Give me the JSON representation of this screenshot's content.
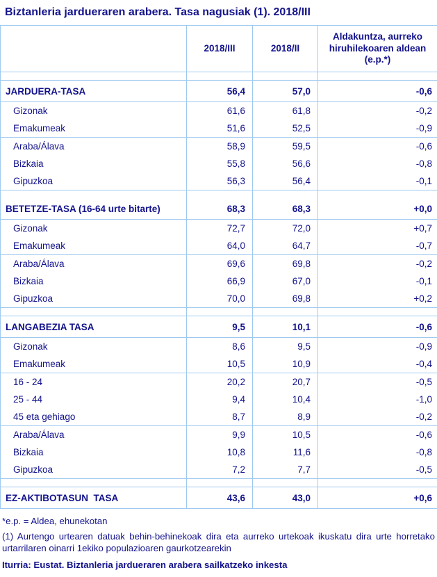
{
  "title": "Biztanleria jardueraren arabera. Tasa nagusiak (1). 2018/III",
  "colors": {
    "text_navy": "#12128c",
    "border_light_blue": "#9fc9f0",
    "background": "#ffffff"
  },
  "table": {
    "columns": {
      "label": "",
      "col1": "2018/III",
      "col2": "2018/II",
      "col3": "Aldakuntza, aurreko hiruhilekoaren aldean (e.p.*)"
    },
    "sections": [
      {
        "header": {
          "label": "JARDUERA-TASA",
          "v1": "56,4",
          "v2": "57,0",
          "chg": "-0,6"
        },
        "rows": [
          {
            "label": "Gizonak",
            "v1": "61,6",
            "v2": "61,8",
            "chg": "-0,2"
          },
          {
            "label": "Emakumeak",
            "v1": "51,6",
            "v2": "52,5",
            "chg": "-0,9"
          },
          {
            "label": "Araba/Álava",
            "v1": "58,9",
            "v2": "59,5",
            "chg": "-0,6"
          },
          {
            "label": "Bizkaia",
            "v1": "55,8",
            "v2": "56,6",
            "chg": "-0,8"
          },
          {
            "label": "Gipuzkoa",
            "v1": "56,3",
            "v2": "56,4",
            "chg": "-0,1"
          }
        ]
      },
      {
        "header": {
          "label": "BETETZE-TASA (16-64 urte bitarte)",
          "v1": "68,3",
          "v2": "68,3",
          "chg": "+0,0"
        },
        "rows": [
          {
            "label": "Gizonak",
            "v1": "72,7",
            "v2": "72,0",
            "chg": "+0,7"
          },
          {
            "label": "Emakumeak",
            "v1": "64,0",
            "v2": "64,7",
            "chg": "-0,7"
          },
          {
            "label": "Araba/Álava",
            "v1": "69,6",
            "v2": "69,8",
            "chg": "-0,2"
          },
          {
            "label": "Bizkaia",
            "v1": "66,9",
            "v2": "67,0",
            "chg": "-0,1"
          },
          {
            "label": "Gipuzkoa",
            "v1": "70,0",
            "v2": "69,8",
            "chg": "+0,2"
          }
        ]
      },
      {
        "header": {
          "label": "LANGABEZIA TASA",
          "v1": "9,5",
          "v2": "10,1",
          "chg": "-0,6"
        },
        "rows": [
          {
            "label": "Gizonak",
            "v1": "8,6",
            "v2": "9,5",
            "chg": "-0,9"
          },
          {
            "label": "Emakumeak",
            "v1": "10,5",
            "v2": "10,9",
            "chg": "-0,4"
          },
          {
            "label": "16 - 24",
            "v1": "20,2",
            "v2": "20,7",
            "chg": "-0,5"
          },
          {
            "label": "25 - 44",
            "v1": "9,4",
            "v2": "10,4",
            "chg": "-1,0"
          },
          {
            "label": "45 eta gehiago",
            "v1": "8,7",
            "v2": "8,9",
            "chg": "-0,2"
          },
          {
            "label": "Araba/Álava",
            "v1": "9,9",
            "v2": "10,5",
            "chg": "-0,6"
          },
          {
            "label": "Bizkaia",
            "v1": "10,8",
            "v2": "11,6",
            "chg": "-0,8"
          },
          {
            "label": "Gipuzkoa",
            "v1": "7,2",
            "v2": "7,7",
            "chg": "-0,5"
          }
        ]
      },
      {
        "header": {
          "label": "EZ-AKTIBOTASUN  TASA",
          "v1": "43,6",
          "v2": "43,0",
          "chg": "+0,6"
        },
        "rows": []
      }
    ]
  },
  "footnotes": {
    "ep_note": "*e.p. = Aldea, ehunekotan",
    "note1": "(1) Aurtengo urtearen datuak behin-behinekoak dira eta aurreko urtekoak ikuskatu dira urte horretako urtarrilaren oinarri 1ekiko populazioaren gaurkotzearekin",
    "source": "Iturria: Eustat. Biztanleria jardueraren arabera sailkatzeko inkesta"
  }
}
